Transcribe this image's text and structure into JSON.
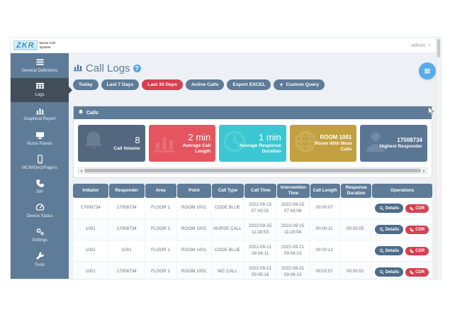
{
  "brand": {
    "logo_text": "ZKR",
    "name_line1": "Nurse Call",
    "name_line2": "System"
  },
  "topbar": {
    "user": "admin",
    "caret": "∨"
  },
  "sidebar": {
    "items": [
      {
        "label": "General Definitions",
        "icon": "list",
        "active": false
      },
      {
        "label": "Logs",
        "icon": "grid",
        "active": true
      },
      {
        "label": "Graphical Report",
        "icon": "chart",
        "active": false
      },
      {
        "label": "Nurse Panels",
        "icon": "monitor",
        "active": false
      },
      {
        "label": "MCW/Dect/Pagers",
        "icon": "mobile",
        "active": false
      },
      {
        "label": "SIP",
        "icon": "phone",
        "active": false
      },
      {
        "label": "Device Status",
        "icon": "gauge",
        "active": false
      },
      {
        "label": "Settings",
        "icon": "gears",
        "active": false
      },
      {
        "label": "Tools",
        "icon": "wrench",
        "active": false
      }
    ]
  },
  "header": {
    "title": "Call Logs",
    "help": "?"
  },
  "filters": [
    {
      "label": "Today",
      "variant": "slate"
    },
    {
      "label": "Last 7 Days",
      "variant": "slate"
    },
    {
      "label": "Last 30 Days",
      "variant": "red"
    },
    {
      "label": "Active Calls",
      "variant": "slate"
    },
    {
      "label": "Export EXCEL",
      "variant": "slate"
    },
    {
      "label": "Custom Query",
      "variant": "slate",
      "icon": "funnel"
    }
  ],
  "panel": {
    "title": "Calls"
  },
  "cards": [
    {
      "value": "8",
      "label": "Call Volume",
      "color": "#53677e",
      "icon": "bell"
    },
    {
      "value": "2 min",
      "label": "Average Call Length",
      "color": "#e4555f",
      "icon": "chart"
    },
    {
      "value": "1 min",
      "label": "Average Response Duration",
      "color": "#3bc7d2",
      "icon": "clock"
    },
    {
      "value": "ROOM 1001",
      "label": "Room With Most Calls",
      "color": "#c3a03f",
      "icon": "globe"
    },
    {
      "value": "17008734",
      "label": "Highest Responder",
      "color": "#5a7695",
      "icon": "person"
    }
  ],
  "table": {
    "columns": [
      "Initiator",
      "Responder",
      "Area",
      "Point",
      "Call Type",
      "Call Time",
      "Intervention Time",
      "Call Length",
      "Response Duration",
      "Operations"
    ],
    "actions": {
      "details": "Details",
      "cdr": "CDR"
    },
    "rows": [
      {
        "initiator": "17008734",
        "responder": "17008734",
        "area": "FLOOR 1",
        "point": "ROOM 1001",
        "call_type": "CODE BLUE",
        "call_date": "2022-09-15",
        "call_time": "07:43:01",
        "intervention_date": "2022-09-15",
        "intervention_time": "07:43:08",
        "call_length": "00:00:07",
        "response_duration": ""
      },
      {
        "initiator": "1001",
        "responder": "17008734",
        "area": "FLOOR 1",
        "point": "ROOM 1001",
        "call_type": "NURSE CALL",
        "call_date": "2022-09-15",
        "call_time": "11:28:53",
        "intervention_date": "2022-09-15",
        "intervention_time": "11:29:04",
        "call_length": "00:00:11",
        "response_duration": "00:00:05"
      },
      {
        "initiator": "1001",
        "responder": "1001",
        "area": "FLOOR 1",
        "point": "ROOM 1001",
        "call_type": "CODE BLUE",
        "call_date": "2022-09-21",
        "call_time": "09:04:11",
        "intervention_date": "2022-09-21",
        "intervention_time": "09:04:23",
        "call_length": "00:00:12",
        "response_duration": ""
      },
      {
        "initiator": "1001",
        "responder": "17008734",
        "area": "FLOOR 1",
        "point": "ROOM 1001",
        "call_type": "WC CALL",
        "call_date": "2022-09-21",
        "call_time": "09:05:16",
        "intervention_date": "2022-09-21",
        "intervention_time": "09:08:13",
        "call_length": "00:02:57",
        "response_duration": "00:00:02"
      }
    ]
  }
}
